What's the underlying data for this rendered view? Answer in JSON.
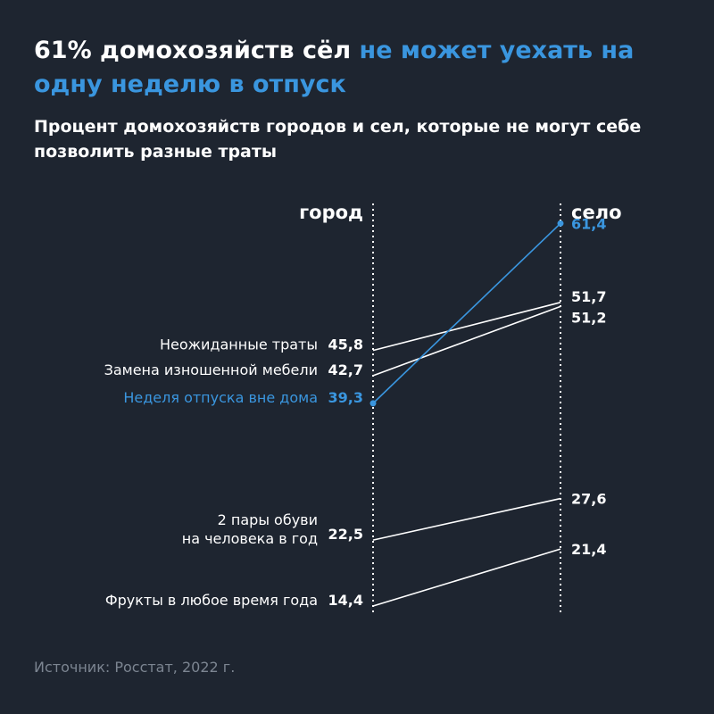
{
  "header": {
    "title_part1": "61% домохозяйств сёл ",
    "title_part2": "не может уехать на одну неделю в отпуск",
    "subtitle": "Процент домохозяйств городов и сел, которые не могут себе позволить разные траты"
  },
  "source": "Источник: Росстат, 2022 г.",
  "colors": {
    "background": "#1e2530",
    "text": "#ffffff",
    "accent": "#3a96df",
    "muted": "#7c8591"
  },
  "chart_data": {
    "type": "line",
    "subtype": "slope",
    "columns": [
      "город",
      "село"
    ],
    "ylim": [
      10,
      65
    ],
    "series": [
      {
        "name": "Неожиданные траты",
        "name_lines": [
          "Неожиданные траты"
        ],
        "values": [
          45.8,
          51.7
        ],
        "labels": [
          "45,8",
          "51,7"
        ],
        "highlight": false
      },
      {
        "name": "Замена изношенной мебели",
        "name_lines": [
          "Замена изношенной мебели"
        ],
        "values": [
          42.7,
          51.2
        ],
        "labels": [
          "42,7",
          "51,2"
        ],
        "highlight": false
      },
      {
        "name": "Неделя отпуска вне дома",
        "name_lines": [
          "Неделя отпуска вне дома"
        ],
        "values": [
          39.3,
          61.4
        ],
        "labels": [
          "39,3",
          "61,4"
        ],
        "highlight": true
      },
      {
        "name": "2 пары обуви на человека в год",
        "name_lines": [
          "2 пары обуви",
          "на человека в год"
        ],
        "values": [
          22.5,
          27.6
        ],
        "labels": [
          "22,5",
          "27,6"
        ],
        "highlight": false
      },
      {
        "name": "Фрукты в любое время года",
        "name_lines": [
          "Фрукты в любое время года"
        ],
        "values": [
          14.4,
          21.4
        ],
        "labels": [
          "14,4",
          "21,4"
        ],
        "highlight": false
      }
    ]
  }
}
